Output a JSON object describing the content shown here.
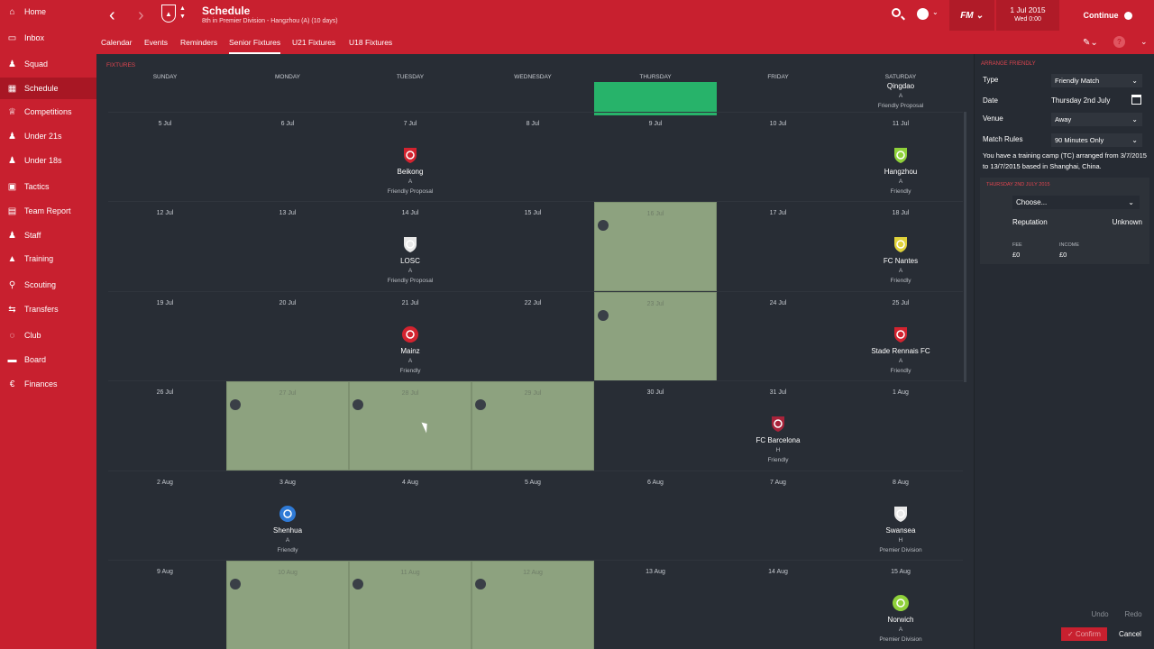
{
  "sidebar": {
    "items": [
      {
        "label": "Home",
        "icon": "house-icon"
      },
      {
        "label": "Inbox",
        "icon": "inbox-icon"
      },
      {
        "label": "Squad",
        "icon": "people-icon"
      },
      {
        "label": "Schedule",
        "icon": "calendar-icon",
        "active": true
      },
      {
        "label": "Competitions",
        "icon": "trophy-icon"
      },
      {
        "label": "Under 21s",
        "icon": "people-icon"
      },
      {
        "label": "Under 18s",
        "icon": "people-icon"
      },
      {
        "label": "Tactics",
        "icon": "tactics-board-icon"
      },
      {
        "label": "Team Report",
        "icon": "report-icon"
      },
      {
        "label": "Staff",
        "icon": "people-icon"
      },
      {
        "label": "Training",
        "icon": "cone-icon"
      },
      {
        "label": "Scouting",
        "icon": "magnifier-icon"
      },
      {
        "label": "Transfers",
        "icon": "transfer-arrows-icon"
      },
      {
        "label": "Club",
        "icon": "shield-icon"
      },
      {
        "label": "Board",
        "icon": "board-icon"
      },
      {
        "label": "Finances",
        "icon": "coin-icon"
      }
    ]
  },
  "header": {
    "title": "Schedule",
    "subtitle": "8th in Premier Division - Hangzhou (A) (10 days)",
    "tabs": [
      "Calendar",
      "Events",
      "Reminders",
      "Senior Fixtures",
      "U21 Fixtures",
      "U18 Fixtures"
    ],
    "active_tab": "Senior Fixtures",
    "fm_label": "FM",
    "date_main": "1 Jul 2015",
    "date_sub": "Wed 0:00",
    "continue_label": "Continue",
    "accent": "#c8202f"
  },
  "calendar": {
    "section_label": "FIXTURES",
    "weekdays": [
      "SUNDAY",
      "MONDAY",
      "TUESDAY",
      "WEDNESDAY",
      "THURSDAY",
      "FRIDAY",
      "SATURDAY"
    ],
    "weeks": [
      [
        "",
        "",
        "",
        "",
        "",
        "",
        ""
      ],
      [
        "5 Jul",
        "6 Jul",
        "7 Jul",
        "8 Jul",
        "9 Jul",
        "10 Jul",
        "11 Jul"
      ],
      [
        "12 Jul",
        "13 Jul",
        "14 Jul",
        "15 Jul",
        "16 Jul",
        "17 Jul",
        "18 Jul"
      ],
      [
        "19 Jul",
        "20 Jul",
        "21 Jul",
        "22 Jul",
        "23 Jul",
        "24 Jul",
        "25 Jul"
      ],
      [
        "26 Jul",
        "27 Jul",
        "28 Jul",
        "29 Jul",
        "30 Jul",
        "31 Jul",
        "1 Aug"
      ],
      [
        "2 Aug",
        "3 Aug",
        "4 Aug",
        "5 Aug",
        "6 Aug",
        "7 Aug",
        "8 Aug"
      ],
      [
        "9 Aug",
        "10 Aug",
        "11 Aug",
        "12 Aug",
        "13 Aug",
        "14 Aug",
        "15 Aug"
      ]
    ],
    "camp_cells": [
      [
        2,
        4
      ],
      [
        3,
        4
      ],
      [
        4,
        1
      ],
      [
        4,
        2
      ],
      [
        4,
        3
      ],
      [
        6,
        1
      ],
      [
        6,
        2
      ],
      [
        6,
        3
      ]
    ],
    "selected_cell": [
      0,
      4
    ],
    "fixtures": [
      {
        "week": 0,
        "day": 6,
        "club": "Qingdao",
        "venue": "A",
        "comp": "Friendly Proposal",
        "badge": "none"
      },
      {
        "week": 1,
        "day": 2,
        "club": "Beikong",
        "venue": "A",
        "comp": "Friendly Proposal",
        "badge": "beikong-crest-icon",
        "color": "#d2232f"
      },
      {
        "week": 1,
        "day": 6,
        "club": "Hangzhou",
        "venue": "A",
        "comp": "Friendly",
        "badge": "hangzhou-crest-icon",
        "color": "#8fd13a"
      },
      {
        "week": 2,
        "day": 2,
        "club": "LOSC",
        "venue": "A",
        "comp": "Friendly Proposal",
        "badge": "losc-crest-icon",
        "color": "#e8e8e8"
      },
      {
        "week": 2,
        "day": 6,
        "club": "FC Nantes",
        "venue": "A",
        "comp": "Friendly",
        "badge": "nantes-crest-icon",
        "color": "#e0d23a"
      },
      {
        "week": 3,
        "day": 2,
        "club": "Mainz",
        "venue": "A",
        "comp": "Friendly",
        "badge": "mainz-crest-icon",
        "color": "#d2232f"
      },
      {
        "week": 3,
        "day": 6,
        "club": "Stade Rennais FC",
        "venue": "A",
        "comp": "Friendly",
        "badge": "rennes-crest-icon",
        "color": "#d2232f"
      },
      {
        "week": 4,
        "day": 5,
        "club": "FC Barcelona",
        "venue": "H",
        "comp": "Friendly",
        "badge": "barcelona-crest-icon",
        "color": "#a8233a"
      },
      {
        "week": 5,
        "day": 1,
        "club": "Shenhua",
        "venue": "A",
        "comp": "Friendly",
        "badge": "shenhua-crest-icon",
        "color": "#2f7ad6"
      },
      {
        "week": 5,
        "day": 6,
        "club": "Swansea",
        "venue": "H",
        "comp": "Premier Division",
        "badge": "swansea-crest-icon",
        "color": "#e8e8e8"
      },
      {
        "week": 6,
        "day": 6,
        "club": "Norwich",
        "venue": "A",
        "comp": "Premier Division",
        "badge": "norwich-crest-icon",
        "color": "#8fd13a"
      }
    ]
  },
  "panel": {
    "title": "ARRANGE FRIENDLY",
    "type_label": "Type",
    "type_value": "Friendly Match",
    "date_label": "Date",
    "date_value": "Thursday 2nd July",
    "venue_label": "Venue",
    "venue_value": "Away",
    "rules_label": "Match Rules",
    "rules_value": "90 Minutes Only",
    "tc_note": "You have a training camp (TC) arranged from 3/7/2015 to 13/7/2015 based in Shanghai, China.",
    "sub_title": "THURSDAY 2ND JULY 2015",
    "choose_value": "Choose...",
    "reputation_label": "Reputation",
    "reputation_value": "Unknown",
    "fee_label": "FEE",
    "fee_value": "£0",
    "income_label": "INCOME",
    "income_value": "£0",
    "undo_label": "Undo",
    "redo_label": "Redo",
    "confirm_label": "Confirm",
    "cancel_label": "Cancel"
  }
}
